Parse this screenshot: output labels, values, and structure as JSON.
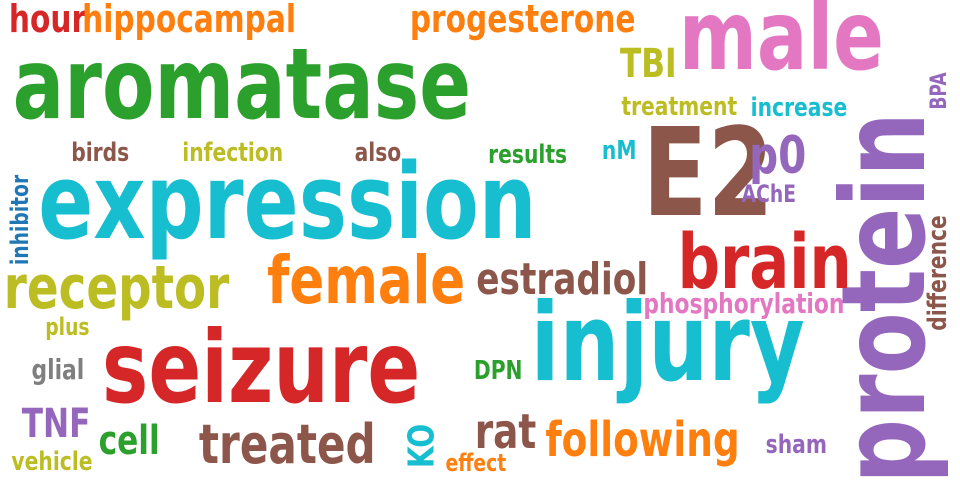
{
  "words": {
    "hour": {
      "text": "hour",
      "color": "#d62728"
    },
    "hippocampal": {
      "text": "hippocampal",
      "color": "#ff7f0e"
    },
    "progesterone": {
      "text": "progesterone",
      "color": "#ff7f0e"
    },
    "male": {
      "text": "male",
      "color": "#e377c2"
    },
    "aromatase": {
      "text": "aromatase",
      "color": "#2ca02c"
    },
    "TBI": {
      "text": "TBI",
      "color": "#bcbd22"
    },
    "treatment": {
      "text": "treatment",
      "color": "#bcbd22"
    },
    "increase": {
      "text": "increase",
      "color": "#17becf"
    },
    "BPA": {
      "text": "BPA",
      "color": "#9467bd"
    },
    "birds": {
      "text": "birds",
      "color": "#8c564b"
    },
    "infection": {
      "text": "infection",
      "color": "#bcbd22"
    },
    "also": {
      "text": "also",
      "color": "#8c564b"
    },
    "results": {
      "text": "results",
      "color": "#2ca02c"
    },
    "nM": {
      "text": "nM",
      "color": "#17becf"
    },
    "E2": {
      "text": "E2",
      "color": "#8c564b"
    },
    "p0": {
      "text": "p0",
      "color": "#9467bd"
    },
    "AChE": {
      "text": "AChE",
      "color": "#9467bd"
    },
    "protein": {
      "text": "protein",
      "color": "#9467bd"
    },
    "difference": {
      "text": "difference",
      "color": "#8c564b"
    },
    "inhibitor": {
      "text": "inhibitor",
      "color": "#1f77b4"
    },
    "expression": {
      "text": "expression",
      "color": "#17becf"
    },
    "brain": {
      "text": "brain",
      "color": "#d62728"
    },
    "receptor": {
      "text": "receptor",
      "color": "#bcbd22"
    },
    "female": {
      "text": "female",
      "color": "#ff7f0e"
    },
    "estradiol": {
      "text": "estradiol",
      "color": "#8c564b"
    },
    "phosphorylation": {
      "text": "phosphorylation",
      "color": "#e377c2"
    },
    "plus": {
      "text": "plus",
      "color": "#bcbd22"
    },
    "seizure": {
      "text": "seizure",
      "color": "#d62728"
    },
    "injury": {
      "text": "injury",
      "color": "#17becf"
    },
    "glial": {
      "text": "glial",
      "color": "#7f7f7f"
    },
    "DPN": {
      "text": "DPN",
      "color": "#2ca02c"
    },
    "TNF": {
      "text": "TNF",
      "color": "#9467bd"
    },
    "cell": {
      "text": "cell",
      "color": "#2ca02c"
    },
    "treated": {
      "text": "treated",
      "color": "#8c564b"
    },
    "KO": {
      "text": "KO",
      "color": "#17becf"
    },
    "rat": {
      "text": "rat",
      "color": "#8c564b"
    },
    "following": {
      "text": "following",
      "color": "#ff7f0e"
    },
    "sham": {
      "text": "sham",
      "color": "#9467bd"
    },
    "vehicle": {
      "text": "vehicle",
      "color": "#bcbd22"
    },
    "effect": {
      "text": "effect",
      "color": "#ff7f0e"
    }
  }
}
